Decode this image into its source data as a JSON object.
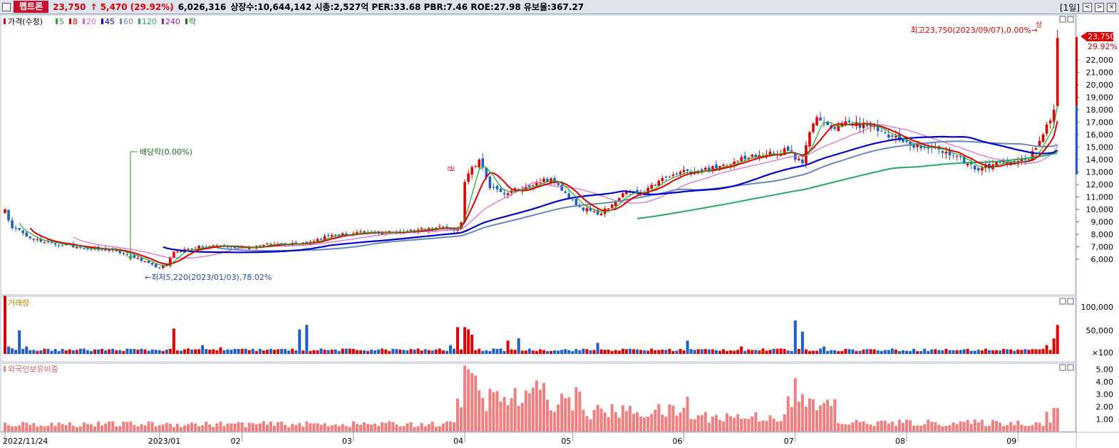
{
  "header": {
    "stock_name": "펩트론",
    "price": "23,750",
    "change": "↑ 5,470 (29.92%)",
    "volume": "6,026,316",
    "info": "상장수:10,644,142 시총:2,527억 PER:33.68 PBR:7.46 ROE:27.98 유보율:367.27",
    "period": "[1일]",
    "btn_prev": "<",
    "btn_next": ">",
    "btn_close": "×"
  },
  "legend": {
    "price_label": "가격(수정)",
    "ma": [
      {
        "label": "5",
        "color": "#22aa22"
      },
      {
        "label": "8",
        "color": "#e00000"
      },
      {
        "label": "20",
        "color": "#dd66cc"
      },
      {
        "label": "45",
        "color": "#0000cc"
      },
      {
        "label": "60",
        "color": "#6688bb"
      },
      {
        "label": "120",
        "color": "#22aa66"
      },
      {
        "label": "240",
        "color": "#9922aa"
      }
    ],
    "rak": "락"
  },
  "annotations": {
    "high": "최고23,750(2023/09/07),0.00%→",
    "high_tag": "상",
    "low": "←최저5,220(2023/01/03),78.02%",
    "dividend": "배당락(0.00%)",
    "ex_rights": "권"
  },
  "price_panel": {
    "current_label": "23,750",
    "pct_label": "29.92%",
    "ticks": [
      "22,000",
      "21,000",
      "20,000",
      "19,000",
      "18,000",
      "17,000",
      "16,000",
      "15,000",
      "14,000",
      "13,000",
      "12,000",
      "11,000",
      "10,000",
      "9,000",
      "8,000",
      "7,000",
      "6,000"
    ]
  },
  "volume_panel": {
    "title": "거래량",
    "ticks": [
      "100,000",
      "50,000",
      "×100"
    ]
  },
  "foreign_panel": {
    "title": "외국인보유비중",
    "ticks": [
      "5.00",
      "4.00",
      "3.00",
      "2.00",
      "1.00"
    ]
  },
  "x_axis": {
    "labels": [
      "2022/11/24",
      "2023/01",
      "02",
      "03",
      "04",
      "05",
      "06",
      "07",
      "08",
      "09"
    ]
  },
  "colors": {
    "up": "#e00000",
    "down": "#1e5fc8",
    "foreign": "#f08080"
  },
  "chart_data": {
    "type": "candlestick",
    "title": "펩트론",
    "x_labels": [
      "2022/11/24",
      "2023/01",
      "02",
      "03",
      "04",
      "05",
      "06",
      "07",
      "08",
      "09"
    ],
    "price_ylim": [
      5000,
      24000
    ],
    "volume_ylim": [
      0,
      130000
    ],
    "foreign_ylim": [
      0,
      5.8
    ],
    "close_anchors": [
      [
        0,
        10000
      ],
      [
        2,
        8500
      ],
      [
        5,
        8100
      ],
      [
        10,
        7400
      ],
      [
        20,
        7000
      ],
      [
        30,
        6700
      ],
      [
        35,
        6300
      ],
      [
        42,
        5350
      ],
      [
        45,
        5500
      ],
      [
        47,
        6600
      ],
      [
        55,
        7000
      ],
      [
        60,
        7100
      ],
      [
        65,
        6900
      ],
      [
        75,
        7200
      ],
      [
        85,
        7400
      ],
      [
        90,
        7900
      ],
      [
        100,
        8100
      ],
      [
        110,
        8200
      ],
      [
        118,
        8500
      ],
      [
        122,
        8600
      ],
      [
        125,
        8300
      ],
      [
        127,
        8950
      ],
      [
        128,
        12200
      ],
      [
        130,
        13400
      ],
      [
        132,
        14000
      ],
      [
        135,
        11700
      ],
      [
        140,
        11300
      ],
      [
        143,
        11600
      ],
      [
        148,
        12200
      ],
      [
        152,
        12500
      ],
      [
        155,
        11500
      ],
      [
        160,
        10200
      ],
      [
        165,
        9600
      ],
      [
        168,
        10100
      ],
      [
        172,
        11300
      ],
      [
        178,
        11300
      ],
      [
        182,
        12300
      ],
      [
        190,
        13100
      ],
      [
        198,
        13300
      ],
      [
        205,
        14200
      ],
      [
        212,
        14400
      ],
      [
        218,
        14700
      ],
      [
        222,
        13700
      ],
      [
        224,
        16200
      ],
      [
        226,
        17400
      ],
      [
        230,
        16500
      ],
      [
        235,
        17000
      ],
      [
        240,
        16700
      ],
      [
        245,
        16100
      ],
      [
        250,
        15400
      ],
      [
        255,
        14900
      ],
      [
        260,
        14800
      ],
      [
        265,
        14300
      ],
      [
        270,
        13200
      ],
      [
        275,
        13600
      ],
      [
        280,
        13800
      ],
      [
        285,
        14000
      ],
      [
        288,
        15500
      ],
      [
        290,
        16800
      ],
      [
        292,
        18000
      ],
      [
        293,
        23750
      ]
    ],
    "vol_spikes": {
      "0": 125000,
      "1": 12000,
      "2": 8000,
      "4": 48000,
      "6": 12000,
      "47": 52000,
      "55": 15000,
      "60": 10000,
      "82": 50000,
      "84": 60000,
      "124": 15000,
      "126": 55000,
      "128": 55000,
      "129": 50000,
      "130": 38000,
      "140": 25000,
      "143": 30000,
      "165": 20000,
      "190": 25000,
      "205": 12000,
      "220": 70000,
      "222": 45000,
      "228": 12000,
      "290": 15000,
      "292": 30000,
      "293": 60000
    },
    "foreign_spikes": {
      "128": 5.3,
      "129": 5.0,
      "130": 4.7,
      "131": 4.5,
      "148": 4.1,
      "150": 3.9,
      "160": 3.2,
      "190": 2.8,
      "220": 4.3,
      "222": 3.0,
      "228": 2.3,
      "290": 1.6,
      "292": 1.9,
      "293": 1.9
    },
    "ma120_range": [
      176,
      293
    ]
  }
}
